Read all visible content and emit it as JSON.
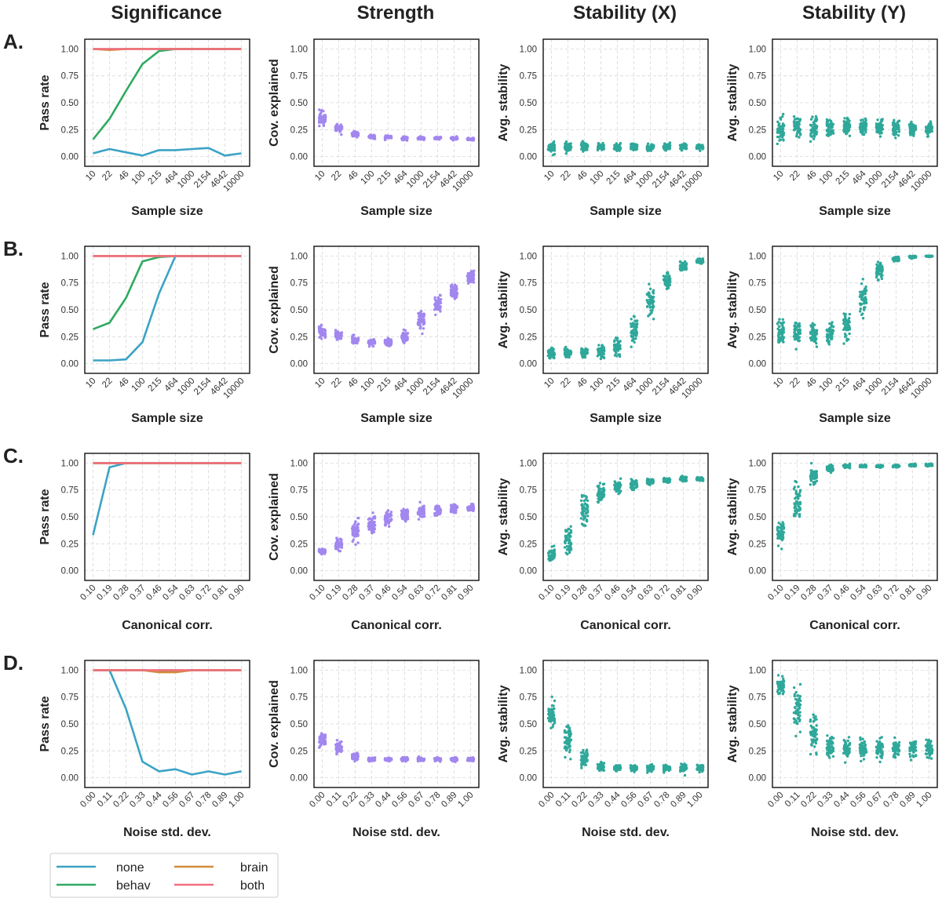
{
  "column_titles": [
    "Significance",
    "Strength",
    "Stability (X)",
    "Stability (Y)"
  ],
  "row_labels": [
    "A.",
    "B.",
    "C.",
    "D."
  ],
  "y_labels": {
    "significance": "Pass rate",
    "strength": "Cov. explained",
    "stability": "Avg. stability"
  },
  "y_ticks": [
    "0.00",
    "0.25",
    "0.50",
    "0.75",
    "1.00"
  ],
  "colors": {
    "none": "#3ba3c5",
    "behav": "#2eaa60",
    "brain": "#d38a3a",
    "both": "#ef6f7e",
    "strength_points": "#a287ef",
    "stability_points": "#2fa89a",
    "grid": "#d9d9d9"
  },
  "legend": [
    {
      "name": "none",
      "color": "#3ba3c5"
    },
    {
      "name": "brain",
      "color": "#d38a3a"
    },
    {
      "name": "behav",
      "color": "#2eaa60"
    },
    {
      "name": "both",
      "color": "#ef6f7e"
    }
  ],
  "chart_data": [
    {
      "row": "A.",
      "type": "line+scatter",
      "xlabel": "Sample size",
      "categories": [
        "10",
        "22",
        "46",
        "100",
        "215",
        "464",
        "1000",
        "2154",
        "4642",
        "10000"
      ],
      "significance": [
        {
          "name": "none",
          "values": [
            0.03,
            0.07,
            0.04,
            0.01,
            0.06,
            0.06,
            0.07,
            0.08,
            0.01,
            0.03
          ]
        },
        {
          "name": "behav",
          "values": [
            0.16,
            0.35,
            0.61,
            0.86,
            0.98,
            1.0,
            1.0,
            1.0,
            1.0,
            1.0
          ]
        },
        {
          "name": "brain",
          "values": [
            1.0,
            0.99,
            1.0,
            1.0,
            1.0,
            1.0,
            1.0,
            1.0,
            1.0,
            1.0
          ]
        },
        {
          "name": "both",
          "values": [
            1.0,
            1.0,
            1.0,
            1.0,
            1.0,
            1.0,
            1.0,
            1.0,
            1.0,
            1.0
          ]
        }
      ],
      "strength_mean": [
        0.35,
        0.26,
        0.21,
        0.19,
        0.18,
        0.17,
        0.17,
        0.17,
        0.17,
        0.16
      ],
      "strength_spread": [
        0.06,
        0.03,
        0.02,
        0.015,
        0.015,
        0.012,
        0.012,
        0.01,
        0.01,
        0.01
      ],
      "stability_x_mean": [
        0.09,
        0.09,
        0.09,
        0.09,
        0.09,
        0.09,
        0.09,
        0.09,
        0.09,
        0.09
      ],
      "stability_x_spread": [
        0.04,
        0.035,
        0.035,
        0.03,
        0.03,
        0.03,
        0.03,
        0.03,
        0.025,
        0.025
      ],
      "stability_y_mean": [
        0.25,
        0.27,
        0.27,
        0.27,
        0.27,
        0.27,
        0.27,
        0.27,
        0.26,
        0.26
      ],
      "stability_y_spread": [
        0.1,
        0.1,
        0.09,
        0.08,
        0.08,
        0.07,
        0.07,
        0.06,
        0.05,
        0.05
      ]
    },
    {
      "row": "B.",
      "type": "line+scatter",
      "xlabel": "Sample size",
      "categories": [
        "10",
        "22",
        "46",
        "100",
        "215",
        "464",
        "1000",
        "2154",
        "4642",
        "10000"
      ],
      "significance": [
        {
          "name": "none",
          "values": [
            0.03,
            0.03,
            0.04,
            0.2,
            0.65,
            1.0,
            1.0,
            1.0,
            1.0,
            1.0
          ]
        },
        {
          "name": "behav",
          "values": [
            0.32,
            0.38,
            0.61,
            0.95,
            0.99,
            1.0,
            1.0,
            1.0,
            1.0,
            1.0
          ]
        },
        {
          "name": "brain",
          "values": [
            1.0,
            1.0,
            1.0,
            1.0,
            1.0,
            1.0,
            1.0,
            1.0,
            1.0,
            1.0
          ]
        },
        {
          "name": "both",
          "values": [
            1.0,
            1.0,
            1.0,
            1.0,
            1.0,
            1.0,
            1.0,
            1.0,
            1.0,
            1.0
          ]
        }
      ],
      "strength_mean": [
        0.3,
        0.26,
        0.22,
        0.2,
        0.2,
        0.25,
        0.4,
        0.55,
        0.67,
        0.8
      ],
      "strength_spread": [
        0.05,
        0.035,
        0.03,
        0.025,
        0.025,
        0.04,
        0.07,
        0.07,
        0.06,
        0.05
      ],
      "stability_x_mean": [
        0.1,
        0.1,
        0.1,
        0.11,
        0.16,
        0.3,
        0.55,
        0.77,
        0.9,
        0.95
      ],
      "stability_x_spread": [
        0.04,
        0.04,
        0.04,
        0.05,
        0.07,
        0.12,
        0.12,
        0.07,
        0.04,
        0.02
      ],
      "stability_y_mean": [
        0.27,
        0.28,
        0.28,
        0.28,
        0.35,
        0.6,
        0.87,
        0.97,
        0.99,
        1.0
      ],
      "stability_y_spread": [
        0.1,
        0.1,
        0.09,
        0.09,
        0.12,
        0.14,
        0.08,
        0.02,
        0.01,
        0.005
      ]
    },
    {
      "row": "C.",
      "type": "line+scatter",
      "xlabel": "Canonical corr.",
      "categories": [
        "0.10",
        "0.19",
        "0.28",
        "0.37",
        "0.46",
        "0.54",
        "0.63",
        "0.72",
        "0.81",
        "0.90"
      ],
      "significance": [
        {
          "name": "none",
          "values": [
            0.33,
            0.96,
            1.0,
            1.0,
            1.0,
            1.0,
            1.0,
            1.0,
            1.0,
            1.0
          ]
        },
        {
          "name": "behav",
          "values": [
            1.0,
            1.0,
            1.0,
            1.0,
            1.0,
            1.0,
            1.0,
            1.0,
            1.0,
            1.0
          ]
        },
        {
          "name": "brain",
          "values": [
            1.0,
            1.0,
            1.0,
            1.0,
            1.0,
            1.0,
            1.0,
            1.0,
            1.0,
            1.0
          ]
        },
        {
          "name": "both",
          "values": [
            1.0,
            1.0,
            1.0,
            1.0,
            1.0,
            1.0,
            1.0,
            1.0,
            1.0,
            1.0
          ]
        }
      ],
      "strength_mean": [
        0.18,
        0.24,
        0.37,
        0.43,
        0.48,
        0.52,
        0.55,
        0.56,
        0.57,
        0.58
      ],
      "strength_spread": [
        0.02,
        0.05,
        0.08,
        0.07,
        0.06,
        0.05,
        0.05,
        0.04,
        0.04,
        0.03
      ],
      "stability_x_mean": [
        0.15,
        0.28,
        0.58,
        0.72,
        0.78,
        0.8,
        0.83,
        0.84,
        0.85,
        0.85
      ],
      "stability_x_spread": [
        0.06,
        0.12,
        0.12,
        0.07,
        0.05,
        0.04,
        0.03,
        0.02,
        0.02,
        0.015
      ],
      "stability_y_mean": [
        0.35,
        0.65,
        0.88,
        0.95,
        0.97,
        0.97,
        0.97,
        0.97,
        0.98,
        0.98
      ],
      "stability_y_spread": [
        0.09,
        0.16,
        0.07,
        0.03,
        0.015,
        0.01,
        0.01,
        0.01,
        0.01,
        0.01
      ]
    },
    {
      "row": "D.",
      "type": "line+scatter",
      "xlabel": "Noise std. dev.",
      "categories": [
        "0.00",
        "0.11",
        "0.22",
        "0.33",
        "0.44",
        "0.56",
        "0.67",
        "0.78",
        "0.89",
        "1.00"
      ],
      "significance": [
        {
          "name": "none",
          "values": [
            1.0,
            1.0,
            0.64,
            0.15,
            0.06,
            0.08,
            0.03,
            0.06,
            0.03,
            0.06
          ]
        },
        {
          "name": "behav",
          "values": [
            1.0,
            1.0,
            1.0,
            1.0,
            0.99,
            0.99,
            1.0,
            1.0,
            1.0,
            1.0
          ]
        },
        {
          "name": "brain",
          "values": [
            1.0,
            1.0,
            1.0,
            1.0,
            0.98,
            0.98,
            1.0,
            1.0,
            1.0,
            1.0
          ]
        },
        {
          "name": "both",
          "values": [
            1.0,
            1.0,
            1.0,
            1.0,
            1.0,
            1.0,
            1.0,
            1.0,
            1.0,
            1.0
          ]
        }
      ],
      "strength_mean": [
        0.35,
        0.28,
        0.2,
        0.17,
        0.17,
        0.17,
        0.17,
        0.17,
        0.17,
        0.17
      ],
      "strength_spread": [
        0.06,
        0.05,
        0.025,
        0.015,
        0.015,
        0.015,
        0.015,
        0.015,
        0.015,
        0.015
      ],
      "stability_x_mean": [
        0.58,
        0.35,
        0.17,
        0.1,
        0.09,
        0.09,
        0.09,
        0.09,
        0.09,
        0.09
      ],
      "stability_x_spread": [
        0.12,
        0.14,
        0.08,
        0.03,
        0.025,
        0.025,
        0.025,
        0.025,
        0.03,
        0.025
      ],
      "stability_y_mean": [
        0.85,
        0.65,
        0.4,
        0.29,
        0.27,
        0.27,
        0.27,
        0.27,
        0.27,
        0.27
      ],
      "stability_y_spread": [
        0.06,
        0.15,
        0.15,
        0.09,
        0.08,
        0.08,
        0.08,
        0.08,
        0.08,
        0.08
      ]
    }
  ]
}
